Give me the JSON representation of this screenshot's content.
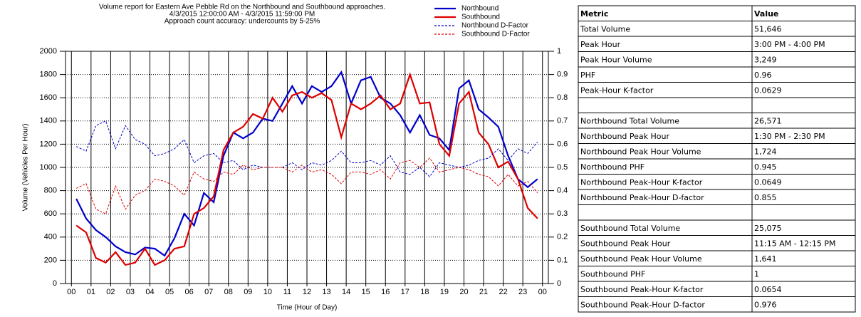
{
  "chart_data": {
    "type": "line",
    "title": [
      "Volume report for  Eastern Ave Pebble Rd  on the Northbound and Southbound approaches.",
      "4/3/2015 12:00:00 AM - 4/3/2015 11:59:00 PM",
      "Approach count accuracy: undercounts by 5-25%"
    ],
    "ylabel": "Volume (Vehicles Per Hour)",
    "xlabel": "Time (Hour of Day)",
    "x": [
      0.25,
      0.75,
      1.25,
      1.75,
      2.25,
      2.75,
      3.25,
      3.75,
      4.25,
      4.75,
      5.25,
      5.75,
      6.25,
      6.75,
      7.25,
      7.75,
      8.25,
      8.75,
      9.25,
      9.75,
      10.25,
      10.75,
      11.25,
      11.75,
      12.25,
      12.75,
      13.25,
      13.75,
      14.25,
      14.75,
      15.25,
      15.75,
      16.25,
      16.75,
      17.25,
      17.75,
      18.25,
      18.75,
      19.25,
      19.75,
      20.25,
      20.75,
      21.25,
      21.75,
      22.25,
      22.75,
      23.25,
      23.75
    ],
    "series": [
      {
        "name": "Northbound",
        "color": "#0000cc",
        "dash": false,
        "axis": "y",
        "values": [
          730,
          560,
          460,
          400,
          320,
          270,
          250,
          310,
          300,
          240,
          390,
          600,
          500,
          780,
          700,
          1100,
          1300,
          1250,
          1300,
          1420,
          1400,
          1550,
          1700,
          1550,
          1700,
          1650,
          1700,
          1820,
          1550,
          1750,
          1780,
          1600,
          1550,
          1450,
          1300,
          1450,
          1280,
          1250,
          1150,
          1680,
          1750,
          1500,
          1430,
          1350,
          1100,
          900,
          830,
          900
        ]
      },
      {
        "name": "Southbound",
        "color": "#dd0000",
        "dash": false,
        "axis": "y",
        "values": [
          500,
          440,
          220,
          180,
          270,
          160,
          180,
          300,
          160,
          200,
          300,
          320,
          600,
          650,
          750,
          1150,
          1300,
          1350,
          1460,
          1420,
          1600,
          1480,
          1620,
          1650,
          1600,
          1640,
          1580,
          1260,
          1550,
          1500,
          1550,
          1620,
          1500,
          1550,
          1800,
          1550,
          1560,
          1200,
          1100,
          1550,
          1650,
          1300,
          1200,
          1000,
          1050,
          900,
          650,
          560
        ]
      },
      {
        "name": "Northbound D-Factor",
        "color": "#0000cc",
        "dash": true,
        "axis": "y2",
        "values": [
          0.59,
          0.57,
          0.68,
          0.7,
          0.58,
          0.68,
          0.62,
          0.6,
          0.55,
          0.56,
          0.58,
          0.62,
          0.52,
          0.55,
          0.56,
          0.52,
          0.53,
          0.49,
          0.51,
          0.5,
          0.5,
          0.5,
          0.52,
          0.49,
          0.52,
          0.51,
          0.53,
          0.57,
          0.52,
          0.52,
          0.53,
          0.51,
          0.55,
          0.48,
          0.47,
          0.5,
          0.46,
          0.52,
          0.51,
          0.5,
          0.51,
          0.53,
          0.54,
          0.58,
          0.53,
          0.58,
          0.56,
          0.61
        ]
      },
      {
        "name": "Southbound D-Factor",
        "color": "#dd0000",
        "dash": true,
        "axis": "y2",
        "values": [
          0.41,
          0.43,
          0.32,
          0.3,
          0.42,
          0.32,
          0.38,
          0.4,
          0.45,
          0.44,
          0.42,
          0.38,
          0.48,
          0.45,
          0.44,
          0.48,
          0.47,
          0.51,
          0.49,
          0.5,
          0.5,
          0.5,
          0.48,
          0.51,
          0.48,
          0.49,
          0.47,
          0.43,
          0.48,
          0.48,
          0.47,
          0.49,
          0.45,
          0.52,
          0.53,
          0.5,
          0.54,
          0.48,
          0.49,
          0.5,
          0.49,
          0.47,
          0.46,
          0.42,
          0.47,
          0.42,
          0.44,
          0.39
        ]
      }
    ],
    "xlim": [
      -0.3,
      24.3
    ],
    "xticks": [
      {
        "value": 0,
        "label": "00"
      },
      {
        "value": 1,
        "label": "01"
      },
      {
        "value": 2,
        "label": "02"
      },
      {
        "value": 3,
        "label": "03"
      },
      {
        "value": 4,
        "label": "04"
      },
      {
        "value": 5,
        "label": "05"
      },
      {
        "value": 6,
        "label": "06"
      },
      {
        "value": 7,
        "label": "07"
      },
      {
        "value": 8,
        "label": "08"
      },
      {
        "value": 9,
        "label": "09"
      },
      {
        "value": 10,
        "label": "10"
      },
      {
        "value": 11,
        "label": "11"
      },
      {
        "value": 12,
        "label": "12"
      },
      {
        "value": 13,
        "label": "13"
      },
      {
        "value": 14,
        "label": "14"
      },
      {
        "value": 15,
        "label": "15"
      },
      {
        "value": 16,
        "label": "16"
      },
      {
        "value": 17,
        "label": "17"
      },
      {
        "value": 18,
        "label": "18"
      },
      {
        "value": 19,
        "label": "19"
      },
      {
        "value": 20,
        "label": "20"
      },
      {
        "value": 21,
        "label": "21"
      },
      {
        "value": 22,
        "label": "22"
      },
      {
        "value": 23,
        "label": "23"
      },
      {
        "value": 24,
        "label": "00"
      }
    ],
    "ylim": [
      0,
      2000
    ],
    "yticks": [
      0,
      200,
      400,
      600,
      800,
      1000,
      1200,
      1400,
      1600,
      1800,
      2000
    ],
    "y2lim": [
      0,
      1
    ],
    "y2ticks": [
      0,
      0.1,
      0.2,
      0.3,
      0.4,
      0.5,
      0.6,
      0.7,
      0.8,
      0.9,
      1
    ],
    "grid": true,
    "legend": "top right"
  },
  "table": {
    "header": [
      "Metric",
      "Value"
    ],
    "sections": [
      [
        [
          "Total Volume",
          "51,646"
        ],
        [
          "Peak Hour",
          "3:00 PM - 4:00 PM"
        ],
        [
          "Peak Hour Volume",
          "3,249"
        ],
        [
          "PHF",
          "0.96"
        ],
        [
          "Peak-Hour K-factor",
          "0.0629"
        ]
      ],
      [
        [
          "Northbound Total Volume",
          "26,571"
        ],
        [
          "Northbound Peak Hour",
          "1:30 PM - 2:30 PM"
        ],
        [
          "Northbound Peak Hour Volume",
          "1,724"
        ],
        [
          "Northbound PHF",
          "0.945"
        ],
        [
          "Northbound Peak-Hour K-factor",
          "0.0649"
        ],
        [
          "Northbound Peak-Hour D-factor",
          "0.855"
        ]
      ],
      [
        [
          "Southbound Total Volume",
          "25,075"
        ],
        [
          "Southbound Peak Hour",
          "11:15 AM - 12:15 PM"
        ],
        [
          "Southbound Peak Hour Volume",
          "1,641"
        ],
        [
          "Southbound PHF",
          "1"
        ],
        [
          "Southbound Peak-Hour K-factor",
          "0.0654"
        ],
        [
          "Southbound Peak-Hour D-factor",
          "0.976"
        ]
      ]
    ]
  }
}
